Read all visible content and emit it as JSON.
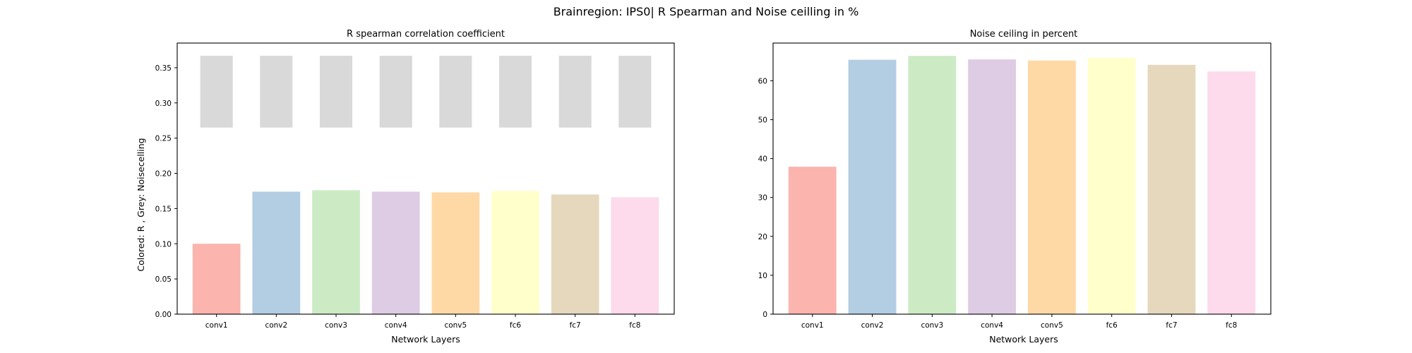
{
  "figure_title": "Brainregion: IPS0| R Spearman and Noise ceilling in %",
  "colors": [
    "#fbb4ae",
    "#b3cde3",
    "#ccebc5",
    "#decbe4",
    "#fed9a6",
    "#ffffcc",
    "#e5d8bd",
    "#fddaec"
  ],
  "noise_ceiling_color": "#d9d9d9",
  "chart_data": [
    {
      "type": "bar",
      "title": "R spearman correlation coefficient",
      "xlabel": "Network Layers",
      "ylabel": "Colored: R , Grey: Noisecelling",
      "categories": [
        "conv1",
        "conv2",
        "conv3",
        "conv4",
        "conv5",
        "fc6",
        "fc7",
        "fc8"
      ],
      "values": [
        0.1,
        0.174,
        0.176,
        0.174,
        0.173,
        0.175,
        0.17,
        0.166
      ],
      "noise_ceiling": {
        "lower": 0.265,
        "upper": 0.367
      },
      "ylim": [
        0,
        0.385
      ],
      "yticks": [
        "0.00",
        "0.05",
        "0.10",
        "0.15",
        "0.20",
        "0.25",
        "0.30",
        "0.35"
      ],
      "grid": false
    },
    {
      "type": "bar",
      "title": "Noise ceiling in percent",
      "xlabel": "Network Layers",
      "ylabel": "",
      "categories": [
        "conv1",
        "conv2",
        "conv3",
        "conv4",
        "conv5",
        "fc6",
        "fc7",
        "fc8"
      ],
      "values": [
        37.9,
        65.4,
        66.4,
        65.5,
        65.2,
        65.9,
        64.1,
        62.4
      ],
      "ylim": [
        0,
        69.7
      ],
      "yticks": [
        "0",
        "10",
        "20",
        "30",
        "40",
        "50",
        "60"
      ],
      "grid": false
    }
  ]
}
